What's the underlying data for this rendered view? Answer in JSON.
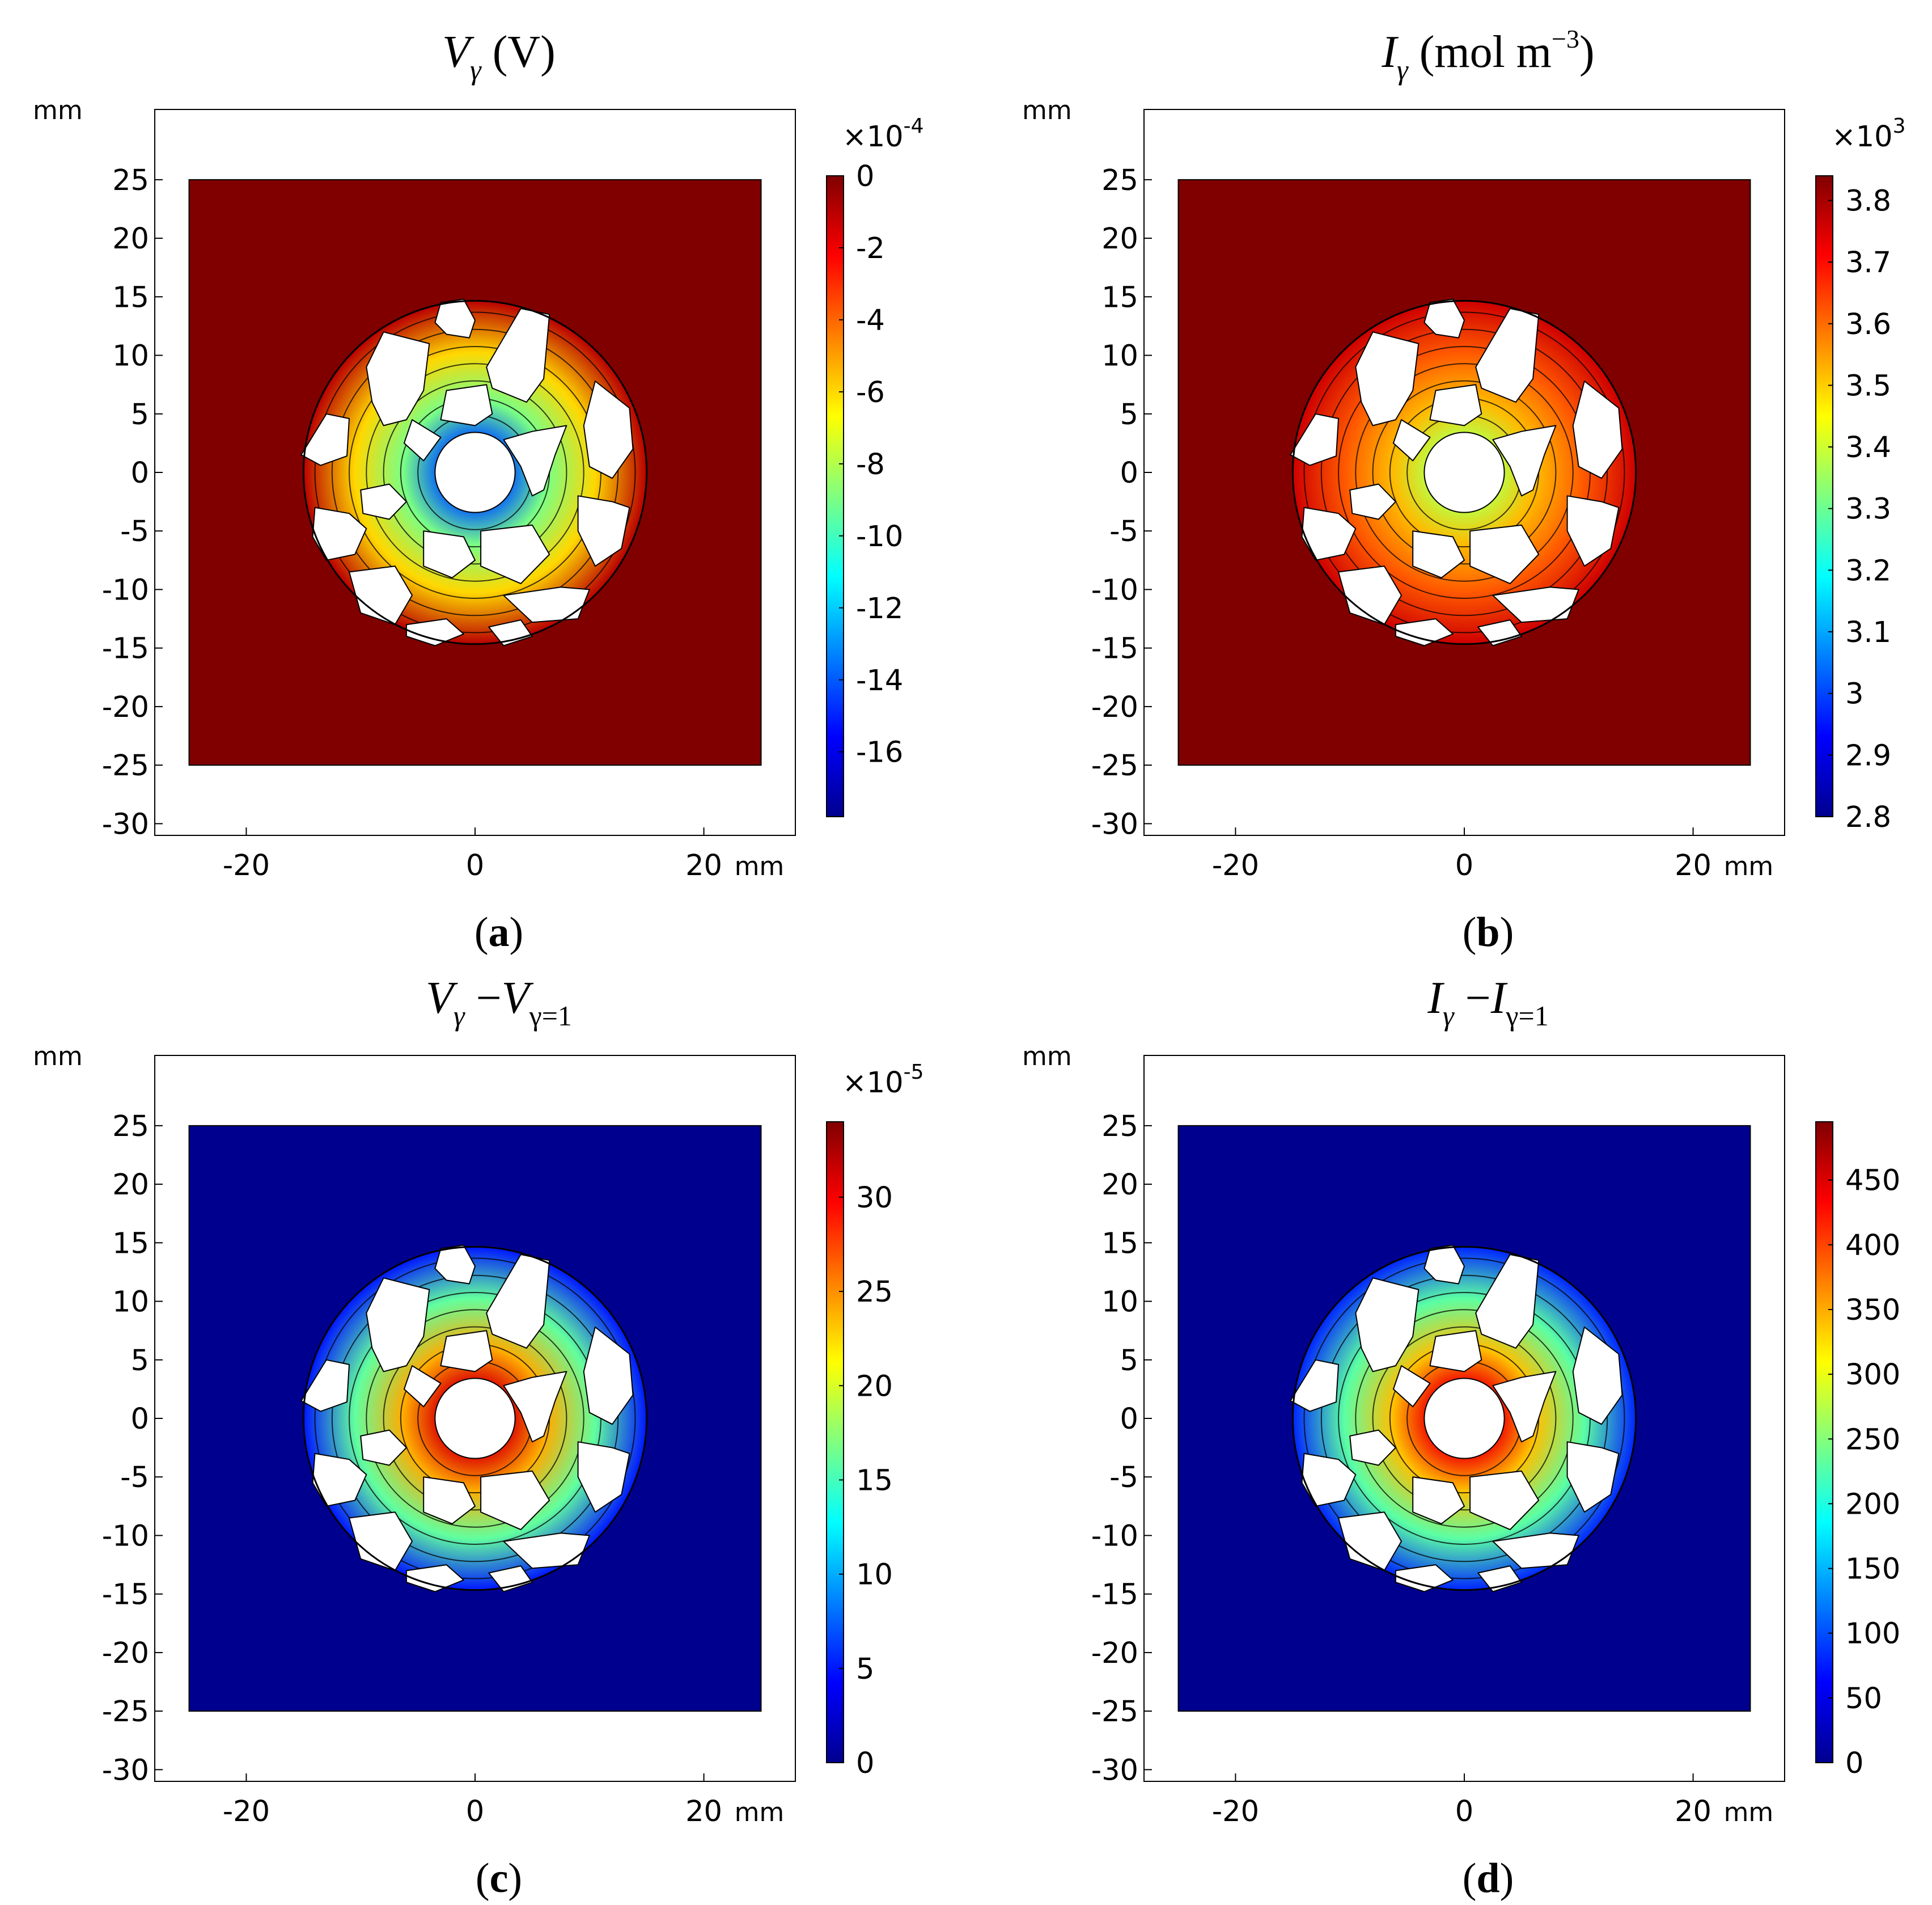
{
  "chart_data": [
    {
      "type": "heatmap",
      "panel": "(a)",
      "panel_letter": "a",
      "title_parts": {
        "base": "V",
        "sub": "γ",
        "rest": " (V)"
      },
      "colorbar": {
        "exponent_label": "×10",
        "exponent_power": "-4",
        "ticks": [
          0,
          -2,
          -4,
          -6,
          -8,
          -10,
          -12,
          -14,
          -16
        ],
        "tick_labels": [
          "0",
          "-2",
          "-4",
          "-6",
          "-8",
          "-10",
          "-12",
          "-14",
          "-16"
        ],
        "min": -17.8,
        "max": 0
      },
      "field_values": {
        "background": 0,
        "outer_ring": -1,
        "middle_ring": -6,
        "inner_ring": -9,
        "center_minimum": -14
      },
      "x_unit": "mm",
      "y_unit": "mm",
      "xlim": [
        -28,
        28
      ],
      "ylim": [
        -31,
        31
      ],
      "x_ticks": [
        -20,
        0,
        20
      ],
      "x_tick_labels": [
        "-20",
        "0",
        "20"
      ],
      "y_ticks": [
        25,
        20,
        15,
        10,
        5,
        0,
        -5,
        -10,
        -15,
        -20,
        -25,
        -30
      ],
      "y_tick_labels": [
        "25",
        "20",
        "15",
        "10",
        "5",
        "0",
        "-5",
        "-10",
        "-15",
        "-20",
        "-25",
        "-30"
      ]
    },
    {
      "type": "heatmap",
      "panel": "(b)",
      "panel_letter": "b",
      "title_parts": {
        "base": "I",
        "sub": "γ",
        "rest": " (mol m",
        "sup": "−3",
        "close": ")"
      },
      "colorbar": {
        "exponent_label": "×10",
        "exponent_power": "3",
        "ticks": [
          3.8,
          3.7,
          3.6,
          3.5,
          3.4,
          3.3,
          3.2,
          3.1,
          3,
          2.9,
          2.8
        ],
        "tick_labels": [
          "3.8",
          "3.7",
          "3.6",
          "3.5",
          "3.4",
          "3.3",
          "3.2",
          "3.1",
          "3",
          "2.9",
          "2.8"
        ],
        "min": 2.8,
        "max": 3.84
      },
      "field_values": {
        "background": 3.84,
        "outer_ring": 3.76,
        "middle_ring": 3.62,
        "inner_ring": 3.52,
        "center_minimum": 3.38
      },
      "x_unit": "mm",
      "y_unit": "mm",
      "xlim": [
        -28,
        28
      ],
      "ylim": [
        -31,
        31
      ],
      "x_ticks": [
        -20,
        0,
        20
      ],
      "x_tick_labels": [
        "-20",
        "0",
        "20"
      ],
      "y_ticks": [
        25,
        20,
        15,
        10,
        5,
        0,
        -5,
        -10,
        -15,
        -20,
        -25,
        -30
      ],
      "y_tick_labels": [
        "25",
        "20",
        "15",
        "10",
        "5",
        "0",
        "-5",
        "-10",
        "-15",
        "-20",
        "-25",
        "-30"
      ]
    },
    {
      "type": "heatmap",
      "panel": "(c)",
      "panel_letter": "c",
      "title_parts": {
        "base": "V",
        "sub": "γ",
        "rest": " −",
        "base2": "V",
        "sub2": "γ=1"
      },
      "colorbar": {
        "exponent_label": "×10",
        "exponent_power": "-5",
        "ticks": [
          30,
          25,
          20,
          15,
          10,
          5,
          0
        ],
        "tick_labels": [
          "30",
          "25",
          "20",
          "15",
          "10",
          "5",
          "0"
        ],
        "min": 0,
        "max": 34
      },
      "field_values": {
        "background": 0,
        "outer_ring": 5,
        "middle_ring": 16,
        "inner_ring": 24,
        "center_maximum": 31
      },
      "x_unit": "mm",
      "y_unit": "mm",
      "xlim": [
        -28,
        28
      ],
      "ylim": [
        -31,
        31
      ],
      "x_ticks": [
        -20,
        0,
        20
      ],
      "x_tick_labels": [
        "-20",
        "0",
        "20"
      ],
      "y_ticks": [
        25,
        20,
        15,
        10,
        5,
        0,
        -5,
        -10,
        -15,
        -20,
        -25,
        -30
      ],
      "y_tick_labels": [
        "25",
        "20",
        "15",
        "10",
        "5",
        "0",
        "-5",
        "-10",
        "-15",
        "-20",
        "-25",
        "-30"
      ]
    },
    {
      "type": "heatmap",
      "panel": "(d)",
      "panel_letter": "d",
      "title_parts": {
        "base": "I",
        "sub": "γ",
        "rest": " −",
        "base2": "I",
        "sub2": "γ=1"
      },
      "colorbar": {
        "exponent_label": "",
        "exponent_power": "",
        "ticks": [
          450,
          400,
          350,
          300,
          250,
          200,
          150,
          100,
          50,
          0
        ],
        "tick_labels": [
          "450",
          "400",
          "350",
          "300",
          "250",
          "200",
          "150",
          "100",
          "50",
          "0"
        ],
        "min": 0,
        "max": 495
      },
      "field_values": {
        "background": 0,
        "outer_ring": 80,
        "middle_ring": 230,
        "inner_ring": 340,
        "center_maximum": 440
      },
      "x_unit": "mm",
      "y_unit": "mm",
      "xlim": [
        -28,
        28
      ],
      "ylim": [
        -31,
        31
      ],
      "x_ticks": [
        -20,
        0,
        20
      ],
      "x_tick_labels": [
        "-20",
        "0",
        "20"
      ],
      "y_ticks": [
        25,
        20,
        15,
        10,
        5,
        0,
        -5,
        -10,
        -15,
        -20,
        -25,
        -30
      ],
      "y_tick_labels": [
        "25",
        "20",
        "15",
        "10",
        "5",
        "0",
        "-5",
        "-10",
        "-15",
        "-20",
        "-25",
        "-30"
      ]
    }
  ],
  "colormap": [
    "#00008f",
    "#0000ff",
    "#00ffff",
    "#ffff00",
    "#ff0000",
    "#800000"
  ],
  "geometry_mm": {
    "square_half_width": 25,
    "circle_radius": 15,
    "ring_radii": [
      14,
      12.5,
      11,
      9.5,
      8,
      6.5,
      5
    ],
    "inner_hole_radius": 3.5
  },
  "pores_mm": [
    {
      "name": "pore-top",
      "pts": [
        [
          -3,
          14.5
        ],
        [
          -1,
          14.8
        ],
        [
          0,
          13
        ],
        [
          -0.5,
          11.5
        ],
        [
          -2.5,
          11.8
        ],
        [
          -3.5,
          12.8
        ]
      ]
    },
    {
      "name": "pore-upper-left",
      "pts": [
        [
          -8,
          12
        ],
        [
          -4,
          11
        ],
        [
          -4.5,
          7
        ],
        [
          -6,
          4.5
        ],
        [
          -8,
          4
        ],
        [
          -9,
          6
        ],
        [
          -9.5,
          9
        ]
      ]
    },
    {
      "name": "pore-upper-right",
      "pts": [
        [
          4,
          14
        ],
        [
          6.5,
          13.5
        ],
        [
          6,
          8
        ],
        [
          4.5,
          6
        ],
        [
          1.5,
          7.2
        ],
        [
          1,
          9
        ]
      ]
    },
    {
      "name": "pore-left-far",
      "pts": [
        [
          -15.2,
          1.5
        ],
        [
          -13,
          5
        ],
        [
          -11,
          4.6
        ],
        [
          -11.2,
          1.4
        ],
        [
          -13.5,
          0.6
        ]
      ]
    },
    {
      "name": "pore-right",
      "pts": [
        [
          10.5,
          7.8
        ],
        [
          13.5,
          5.5
        ],
        [
          13.8,
          2
        ],
        [
          12,
          -0.5
        ],
        [
          10,
          0.5
        ],
        [
          9.5,
          4
        ]
      ]
    },
    {
      "name": "pore-right-lower",
      "pts": [
        [
          9,
          -2
        ],
        [
          12,
          -2.5
        ],
        [
          13.5,
          -3
        ],
        [
          12.8,
          -6.5
        ],
        [
          10.5,
          -8
        ],
        [
          9,
          -5
        ]
      ]
    },
    {
      "name": "pore-left-lower",
      "pts": [
        [
          -14,
          -3
        ],
        [
          -11,
          -3.5
        ],
        [
          -9.5,
          -4.8
        ],
        [
          -10.5,
          -7
        ],
        [
          -13,
          -7.5
        ],
        [
          -14.2,
          -5.5
        ]
      ]
    },
    {
      "name": "pore-left-mid",
      "pts": [
        [
          -10,
          -1.5
        ],
        [
          -7.5,
          -1
        ],
        [
          -6,
          -2.5
        ],
        [
          -7.5,
          -4
        ],
        [
          -9.8,
          -3.5
        ]
      ]
    },
    {
      "name": "pore-lower-left",
      "pts": [
        [
          -11,
          -8.5
        ],
        [
          -7,
          -8
        ],
        [
          -5.5,
          -10.5
        ],
        [
          -7,
          -13
        ],
        [
          -10,
          -12
        ]
      ]
    },
    {
      "name": "pore-lower-mid",
      "pts": [
        [
          -4.5,
          -5
        ],
        [
          -1,
          -5.5
        ],
        [
          0,
          -7.5
        ],
        [
          -2,
          -9
        ],
        [
          -4.5,
          -8
        ]
      ]
    },
    {
      "name": "pore-lower-center",
      "pts": [
        [
          0.5,
          -5
        ],
        [
          5,
          -4.5
        ],
        [
          6.5,
          -7
        ],
        [
          4,
          -9.5
        ],
        [
          0.5,
          -8
        ]
      ]
    },
    {
      "name": "pore-bottom-left",
      "pts": [
        [
          -6,
          -13
        ],
        [
          -2.5,
          -12.5
        ],
        [
          -1,
          -13.8
        ],
        [
          -3.5,
          -14.8
        ],
        [
          -6,
          -14
        ]
      ]
    },
    {
      "name": "pore-bottom-right",
      "pts": [
        [
          1.2,
          -13.2
        ],
        [
          4,
          -12.6
        ],
        [
          5,
          -14
        ],
        [
          2.5,
          -14.8
        ]
      ]
    },
    {
      "name": "pore-lower-right",
      "pts": [
        [
          2.5,
          -10.5
        ],
        [
          7.5,
          -9.8
        ],
        [
          10,
          -10
        ],
        [
          9,
          -12.5
        ],
        [
          5,
          -12.8
        ]
      ]
    },
    {
      "name": "pore-inner-top",
      "pts": [
        [
          -2.5,
          7
        ],
        [
          1,
          7.5
        ],
        [
          1.5,
          5
        ],
        [
          0,
          4
        ],
        [
          -3,
          4.5
        ]
      ]
    },
    {
      "name": "pore-inner-left",
      "pts": [
        [
          -5.5,
          4.5
        ],
        [
          -3,
          3
        ],
        [
          -4.5,
          1
        ],
        [
          -6.2,
          2.5
        ]
      ]
    },
    {
      "name": "pore-inner-right",
      "pts": [
        [
          2.5,
          2.8
        ],
        [
          5,
          3.5
        ],
        [
          8,
          4
        ],
        [
          7,
          1.5
        ],
        [
          6,
          -1.5
        ],
        [
          5,
          -2
        ],
        [
          4,
          0.5
        ]
      ]
    }
  ]
}
